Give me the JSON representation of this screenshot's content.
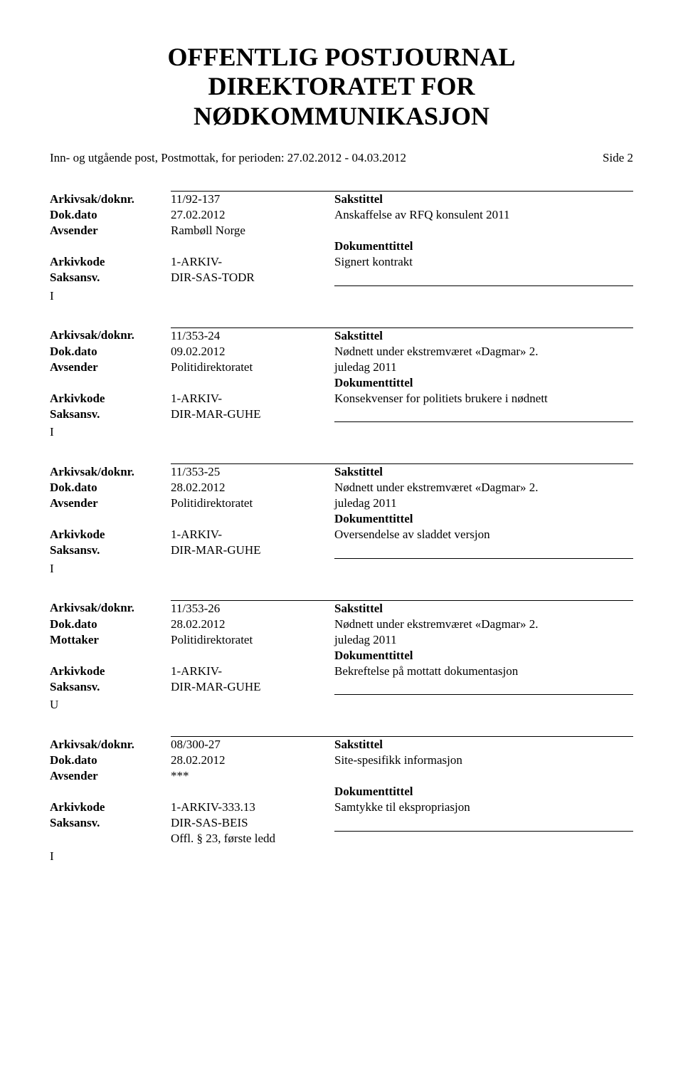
{
  "header": {
    "title1": "OFFENTLIG POSTJOURNAL",
    "title2": "DIREKTORATET FOR",
    "title3": "NØDKOMMUNIKASJON",
    "subtitle": "Inn- og utgående post, Postmottak, for perioden: 27.02.2012 - 04.03.2012",
    "side": "Side 2"
  },
  "labels": {
    "arkivsak": "Arkivsak/doknr.",
    "dokdato": "Dok.dato",
    "avsender": "Avsender",
    "mottaker": "Mottaker",
    "arkivkode": "Arkivkode",
    "saksansv": "Saksansv.",
    "sakstittel": "Sakstittel",
    "dokumenttittel": "Dokumenttittel"
  },
  "records": [
    {
      "io_before": "",
      "arkivsak": "11/92-137",
      "dokdato": "27.02.2012",
      "party_label": "Avsender",
      "party": "Rambøll Norge",
      "arkivkode": "1-ARKIV-",
      "saksansv": "DIR-SAS-TODR",
      "extra": "",
      "sakstittel": "Anskaffelse av RFQ konsulent 2011",
      "sakstittel2": "",
      "doktittel": "Signert kontrakt",
      "io_after": "I"
    },
    {
      "io_before": "",
      "arkivsak": "11/353-24",
      "dokdato": "09.02.2012",
      "party_label": "Avsender",
      "party": "Politidirektoratet",
      "arkivkode": "1-ARKIV-",
      "saksansv": "DIR-MAR-GUHE",
      "extra": "",
      "sakstittel": "Nødnett under ekstremværet «Dagmar» 2.",
      "sakstittel2": "juledag 2011",
      "doktittel": "Konsekvenser for politiets brukere i nødnett",
      "io_after": "I"
    },
    {
      "io_before": "",
      "arkivsak": "11/353-25",
      "dokdato": "28.02.2012",
      "party_label": "Avsender",
      "party": "Politidirektoratet",
      "arkivkode": "1-ARKIV-",
      "saksansv": "DIR-MAR-GUHE",
      "extra": "",
      "sakstittel": "Nødnett under ekstremværet «Dagmar» 2.",
      "sakstittel2": "juledag 2011",
      "doktittel": "Oversendelse av sladdet versjon",
      "io_after": "I"
    },
    {
      "io_before": "",
      "arkivsak": "11/353-26",
      "dokdato": "28.02.2012",
      "party_label": "Mottaker",
      "party": "Politidirektoratet",
      "arkivkode": "1-ARKIV-",
      "saksansv": "DIR-MAR-GUHE",
      "extra": "",
      "sakstittel": "Nødnett under ekstremværet «Dagmar» 2.",
      "sakstittel2": "juledag 2011",
      "doktittel": "Bekreftelse på mottatt dokumentasjon",
      "io_after": "U"
    },
    {
      "io_before": "",
      "arkivsak": "08/300-27",
      "dokdato": "28.02.2012",
      "party_label": "Avsender",
      "party": "***",
      "arkivkode": "1-ARKIV-333.13",
      "saksansv": "DIR-SAS-BEIS",
      "extra": "Offl. § 23, første ledd",
      "sakstittel": "Site-spesifikk informasjon",
      "sakstittel2": "",
      "doktittel": "Samtykke til ekspropriasjon",
      "io_after": "I"
    }
  ]
}
